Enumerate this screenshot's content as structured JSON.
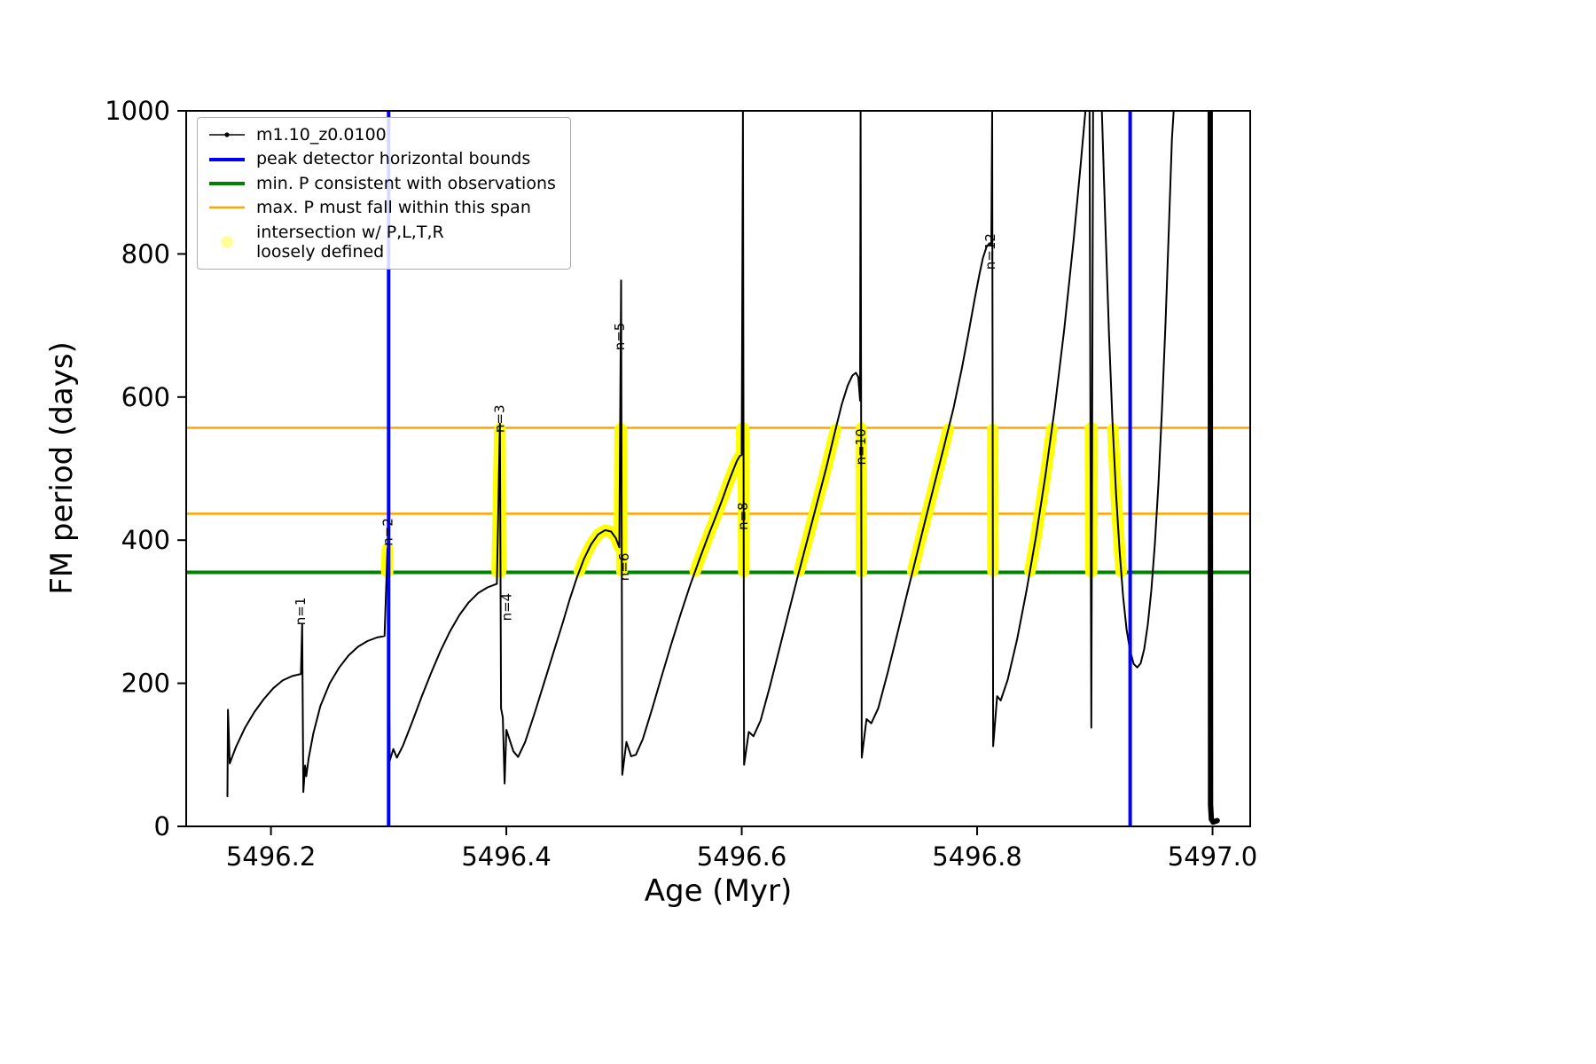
{
  "chart_data": {
    "type": "line",
    "title": "",
    "xlabel": "Age (Myr)",
    "ylabel": "FM period (days)",
    "xlim": [
      5496.128,
      5497.032
    ],
    "ylim": [
      0,
      1000
    ],
    "grid": false,
    "xticks": {
      "values": [
        5496.2,
        5496.4,
        5496.6,
        5496.8,
        5497.0
      ],
      "labels": [
        "5496.2",
        "5496.4",
        "5496.6",
        "5496.8",
        "5497.0"
      ]
    },
    "yticks": {
      "values": [
        0,
        200,
        400,
        600,
        800,
        1000
      ],
      "labels": [
        "0",
        "200",
        "400",
        "600",
        "800",
        "1000"
      ]
    },
    "legend": {
      "position": "upper left",
      "entries": [
        {
          "type": "line-marker",
          "color": "#000000",
          "width": 1.5,
          "lines": [
            "m1.10_z0.0100"
          ]
        },
        {
          "type": "line",
          "color": "#0000ff",
          "width": 4,
          "lines": [
            "peak detector horizontal bounds"
          ]
        },
        {
          "type": "line",
          "color": "#008000",
          "width": 4,
          "lines": [
            "min. P consistent with observations"
          ]
        },
        {
          "type": "line",
          "color": "#ffa500",
          "width": 2.5,
          "lines": [
            "max. P must fall within this span"
          ]
        },
        {
          "type": "marker",
          "color": "#ffff00",
          "lines": [
            "intersection w/ P,L,T,R",
            "loosely defined"
          ]
        }
      ]
    },
    "vlines": [
      {
        "name": "peak-bound-left",
        "x": 5496.3,
        "color": "#0000ff",
        "width": 4
      },
      {
        "name": "peak-bound-right",
        "x": 5496.93,
        "color": "#0000ff",
        "width": 4
      }
    ],
    "hlines": [
      {
        "name": "min-p-observed",
        "y": 355,
        "color": "#008000",
        "width": 4
      },
      {
        "name": "max-p-span-lower",
        "y": 437,
        "color": "#ffa500",
        "width": 2.5
      },
      {
        "name": "max-p-span-upper",
        "y": 557,
        "color": "#ffa500",
        "width": 2.5
      }
    ],
    "highlight": {
      "name": "intersection-highlight",
      "color": "#ffff00",
      "period_band": [
        355,
        557
      ],
      "age_range": [
        5496.297,
        5496.936
      ],
      "stroke": 13
    },
    "mode_labels": [
      {
        "text": "n=1",
        "x": 5496.229,
        "y": 281
      },
      {
        "text": "n=2",
        "x": 5496.303,
        "y": 392
      },
      {
        "text": "n=3",
        "x": 5496.398,
        "y": 550
      },
      {
        "text": "n=4",
        "x": 5496.404,
        "y": 287
      },
      {
        "text": "n=5",
        "x": 5496.5,
        "y": 665
      },
      {
        "text": "n=6",
        "x": 5496.504,
        "y": 343
      },
      {
        "text": "n=8",
        "x": 5496.605,
        "y": 414
      },
      {
        "text": "n=10",
        "x": 5496.705,
        "y": 505
      },
      {
        "text": "n=12",
        "x": 5496.815,
        "y": 778
      }
    ],
    "series": [
      {
        "name": "m1.10_z0.0100",
        "color": "#000000",
        "width": 2,
        "segment_widths": [
          2,
          2,
          2,
          6
        ],
        "segments": [
          [
            [
              5496.163,
              42
            ],
            [
              5496.1635,
              163
            ],
            [
              5496.165,
              88
            ],
            [
              5496.17,
              110
            ],
            [
              5496.178,
              138
            ],
            [
              5496.186,
              160
            ],
            [
              5496.194,
              178
            ],
            [
              5496.202,
              193
            ],
            [
              5496.21,
              204
            ],
            [
              5496.218,
              210
            ],
            [
              5496.2255,
              213
            ],
            [
              5496.2265,
              283
            ],
            [
              5496.2275,
              48
            ],
            [
              5496.229,
              85
            ],
            [
              5496.23,
              70
            ],
            [
              5496.232,
              95
            ],
            [
              5496.236,
              130
            ],
            [
              5496.242,
              168
            ],
            [
              5496.25,
              200
            ],
            [
              5496.258,
              222
            ],
            [
              5496.266,
              239
            ],
            [
              5496.274,
              251
            ],
            [
              5496.282,
              259
            ],
            [
              5496.29,
              264
            ],
            [
              5496.2965,
              266
            ],
            [
              5496.299,
              388
            ],
            [
              5496.3,
              240
            ],
            [
              5496.301,
              92
            ],
            [
              5496.304,
              108
            ],
            [
              5496.307,
              96
            ],
            [
              5496.312,
              112
            ],
            [
              5496.32,
              146
            ],
            [
              5496.328,
              181
            ],
            [
              5496.336,
              214
            ],
            [
              5496.344,
              245
            ],
            [
              5496.352,
              272
            ],
            [
              5496.36,
              295
            ],
            [
              5496.368,
              313
            ],
            [
              5496.376,
              326
            ],
            [
              5496.384,
              334
            ],
            [
              5496.392,
              339
            ],
            [
              5496.3945,
              563
            ],
            [
              5496.3955,
              165
            ],
            [
              5496.397,
              152
            ],
            [
              5496.3985,
              60
            ],
            [
              5496.4,
              135
            ],
            [
              5496.406,
              105
            ],
            [
              5496.41,
              97
            ],
            [
              5496.416,
              118
            ],
            [
              5496.424,
              158
            ],
            [
              5496.432,
              200
            ],
            [
              5496.44,
              243
            ],
            [
              5496.448,
              285
            ],
            [
              5496.454,
              318
            ],
            [
              5496.46,
              348
            ],
            [
              5496.466,
              374
            ],
            [
              5496.472,
              394
            ],
            [
              5496.478,
              408
            ],
            [
              5496.484,
              414
            ],
            [
              5496.489,
              412
            ],
            [
              5496.493,
              403
            ],
            [
              5496.496,
              390
            ],
            [
              5496.4975,
              763
            ],
            [
              5496.4985,
              72
            ],
            [
              5496.502,
              118
            ],
            [
              5496.506,
              98
            ],
            [
              5496.51,
              100
            ],
            [
              5496.516,
              122
            ],
            [
              5496.524,
              165
            ],
            [
              5496.532,
              210
            ],
            [
              5496.54,
              254
            ],
            [
              5496.548,
              296
            ],
            [
              5496.556,
              336
            ],
            [
              5496.564,
              373
            ],
            [
              5496.572,
              408
            ],
            [
              5496.578,
              433
            ],
            [
              5496.584,
              459
            ],
            [
              5496.589,
              482
            ],
            [
              5496.593,
              499
            ],
            [
              5496.596,
              511
            ],
            [
              5496.5985,
              518
            ],
            [
              5496.6,
              519
            ],
            [
              5496.601,
              1000
            ],
            [
              5496.602,
              86
            ],
            [
              5496.606,
              132
            ],
            [
              5496.61,
              126
            ],
            [
              5496.616,
              148
            ],
            [
              5496.624,
              196
            ],
            [
              5496.632,
              248
            ],
            [
              5496.64,
              300
            ],
            [
              5496.648,
              352
            ],
            [
              5496.656,
              402
            ],
            [
              5496.664,
              452
            ],
            [
              5496.672,
              502
            ],
            [
              5496.679,
              550
            ],
            [
              5496.685,
              590
            ],
            [
              5496.69,
              616
            ],
            [
              5496.694,
              630
            ],
            [
              5496.697,
              634
            ],
            [
              5496.699,
              628
            ],
            [
              5496.7005,
              595
            ],
            [
              5496.701,
              1000
            ],
            [
              5496.702,
              96
            ],
            [
              5496.706,
              150
            ],
            [
              5496.71,
              144
            ],
            [
              5496.716,
              165
            ],
            [
              5496.724,
              215
            ],
            [
              5496.732,
              268
            ],
            [
              5496.74,
              322
            ],
            [
              5496.748,
              375
            ],
            [
              5496.756,
              428
            ],
            [
              5496.764,
              480
            ],
            [
              5496.772,
              532
            ],
            [
              5496.78,
              585
            ],
            [
              5496.787,
              640
            ],
            [
              5496.793,
              692
            ],
            [
              5496.798,
              738
            ],
            [
              5496.802,
              772
            ],
            [
              5496.805,
              795
            ],
            [
              5496.808,
              810
            ],
            [
              5496.8105,
              815
            ],
            [
              5496.812,
              812
            ],
            [
              5496.8128,
              1000
            ],
            [
              5496.8136,
              112
            ],
            [
              5496.817,
              182
            ],
            [
              5496.82,
              176
            ],
            [
              5496.826,
              205
            ],
            [
              5496.834,
              262
            ],
            [
              5496.842,
              330
            ],
            [
              5496.85,
              405
            ],
            [
              5496.858,
              490
            ],
            [
              5496.866,
              585
            ],
            [
              5496.874,
              695
            ],
            [
              5496.882,
              820
            ],
            [
              5496.888,
              925
            ],
            [
              5496.892,
              1000
            ]
          ],
          [
            [
              5496.8955,
              1000
            ],
            [
              5496.897,
              138
            ],
            [
              5496.8985,
              1000
            ]
          ],
          [
            [
              5496.906,
              1000
            ],
            [
              5496.909,
              840
            ],
            [
              5496.912,
              690
            ],
            [
              5496.915,
              565
            ],
            [
              5496.918,
              465
            ],
            [
              5496.921,
              385
            ],
            [
              5496.924,
              322
            ],
            [
              5496.927,
              275
            ],
            [
              5496.93,
              245
            ],
            [
              5496.933,
              227
            ],
            [
              5496.936,
              222
            ],
            [
              5496.939,
              228
            ],
            [
              5496.942,
              248
            ],
            [
              5496.945,
              282
            ],
            [
              5496.948,
              330
            ],
            [
              5496.951,
              395
            ],
            [
              5496.954,
              478
            ],
            [
              5496.957,
              580
            ],
            [
              5496.96,
              700
            ],
            [
              5496.963,
              840
            ],
            [
              5496.9655,
              960
            ],
            [
              5496.967,
              1000
            ]
          ],
          [
            [
              5496.998,
              1000
            ],
            [
              5496.9983,
              30
            ],
            [
              5496.999,
              10
            ],
            [
              5497.0005,
              6
            ],
            [
              5497.004,
              8
            ]
          ]
        ]
      }
    ]
  }
}
